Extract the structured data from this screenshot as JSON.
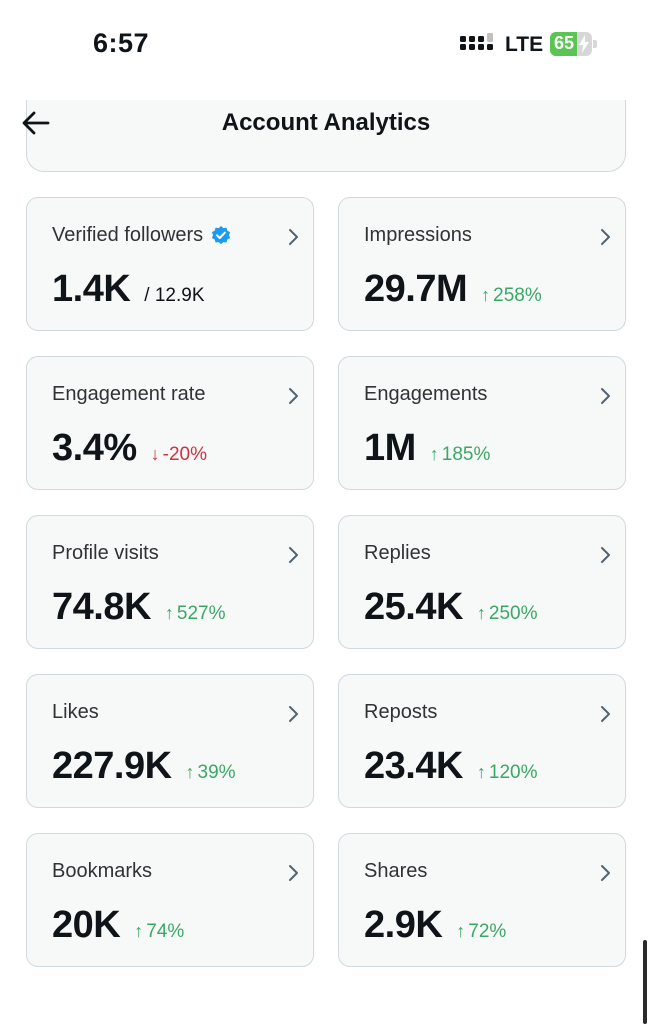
{
  "status_bar": {
    "time": "6:57",
    "network": "LTE",
    "battery_percent": "65",
    "battery_level": 0.65
  },
  "header": {
    "title": "Account Analytics"
  },
  "metrics": [
    {
      "label": "Verified followers",
      "value": "1.4K",
      "sub": "/ 12.9K",
      "verified": true
    },
    {
      "label": "Impressions",
      "value": "29.7M",
      "change": "258%",
      "direction": "up"
    },
    {
      "label": "Engagement rate",
      "value": "3.4%",
      "change": "-20%",
      "direction": "down"
    },
    {
      "label": "Engagements",
      "value": "1M",
      "change": "185%",
      "direction": "up"
    },
    {
      "label": "Profile visits",
      "value": "74.8K",
      "change": "527%",
      "direction": "up"
    },
    {
      "label": "Replies",
      "value": "25.4K",
      "change": "250%",
      "direction": "up"
    },
    {
      "label": "Likes",
      "value": "227.9K",
      "change": "39%",
      "direction": "up"
    },
    {
      "label": "Reposts",
      "value": "23.4K",
      "change": "120%",
      "direction": "up"
    },
    {
      "label": "Bookmarks",
      "value": "20K",
      "change": "74%",
      "direction": "up"
    },
    {
      "label": "Shares",
      "value": "2.9K",
      "change": "72%",
      "direction": "up"
    }
  ],
  "colors": {
    "up": "#3aa864",
    "down": "#d0303f",
    "verified": "#1d9bf0",
    "battery": "#5bc553"
  },
  "icons": {
    "back": "arrow-left-icon",
    "chevron": "chevron-right-icon",
    "verified": "verified-badge-icon"
  }
}
